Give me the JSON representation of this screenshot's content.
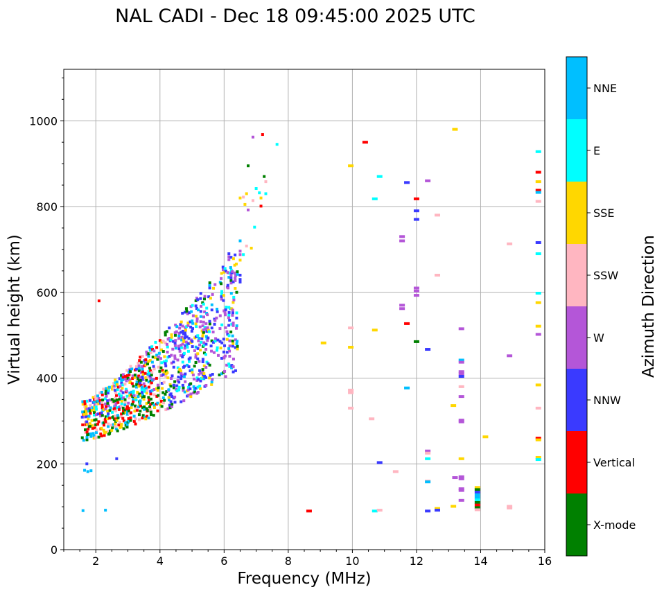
{
  "chart_data": {
    "type": "scatter",
    "title": "NAL CADI - Dec 18 09:45:00 2025 UTC",
    "xlabel": "Frequency (MHz)",
    "ylabel": "Virtual height (km)",
    "xlim": [
      1,
      16
    ],
    "ylim": [
      0,
      1120
    ],
    "xticks": [
      2,
      4,
      6,
      8,
      10,
      12,
      14,
      16
    ],
    "xtick_labels": [
      "2",
      "4",
      "6",
      "8",
      "10",
      "12",
      "14",
      "16"
    ],
    "yticks": [
      0,
      200,
      400,
      600,
      800,
      1000
    ],
    "ytick_labels": [
      "0",
      "200",
      "400",
      "600",
      "800",
      "1000"
    ],
    "grid": true,
    "colorbar": {
      "label": "Azimuth Direction",
      "categories": [
        "X-mode",
        "Vertical",
        "NNW",
        "W",
        "SSW",
        "SSE",
        "E",
        "NNE"
      ],
      "colors": {
        "X-mode": "#008000",
        "Vertical": "#ff0000",
        "NNW": "#3a3aff",
        "W": "#b456d8",
        "SSW": "#ffb6c1",
        "SSE": "#ffd700",
        "E": "#00ffff",
        "NNE": "#00bfff"
      }
    },
    "cluster": {
      "description_free": true,
      "freq_range": [
        1.6,
        6.4
      ],
      "height_lower_at_start": 255,
      "height_upper_at_start": 345,
      "height_lower_at_end": 420,
      "height_upper_at_end": 700
    },
    "points": [
      {
        "f": 1.65,
        "h": 185,
        "c": "NNE"
      },
      {
        "f": 1.75,
        "h": 182,
        "c": "NNE"
      },
      {
        "f": 1.85,
        "h": 184,
        "c": "NNE"
      },
      {
        "f": 1.72,
        "h": 200,
        "c": "NNW"
      },
      {
        "f": 1.6,
        "h": 91,
        "c": "NNE"
      },
      {
        "f": 2.3,
        "h": 92,
        "c": "NNE"
      },
      {
        "f": 2.65,
        "h": 212,
        "c": "NNW"
      },
      {
        "f": 2.1,
        "h": 580,
        "c": "Vertical"
      },
      {
        "f": 6.0,
        "h": 447,
        "c": "W"
      },
      {
        "f": 6.2,
        "h": 562,
        "c": "NNE"
      },
      {
        "f": 6.1,
        "h": 612,
        "c": "W"
      },
      {
        "f": 6.15,
        "h": 690,
        "c": "NNW"
      },
      {
        "f": 6.15,
        "h": 683,
        "c": "W"
      },
      {
        "f": 6.15,
        "h": 676,
        "c": "W"
      },
      {
        "f": 6.15,
        "h": 645,
        "c": "E"
      },
      {
        "f": 6.15,
        "h": 635,
        "c": "NNE"
      },
      {
        "f": 6.5,
        "h": 696,
        "c": "W"
      },
      {
        "f": 6.5,
        "h": 688,
        "c": "W"
      },
      {
        "f": 6.6,
        "h": 688,
        "c": "E"
      },
      {
        "f": 6.5,
        "h": 675,
        "c": "SSE"
      },
      {
        "f": 6.5,
        "h": 640,
        "c": "NNW"
      },
      {
        "f": 6.5,
        "h": 630,
        "c": "NNW"
      },
      {
        "f": 6.5,
        "h": 624,
        "c": "NNW"
      },
      {
        "f": 6.5,
        "h": 720,
        "c": "NNE"
      },
      {
        "f": 6.7,
        "h": 708,
        "c": "SSW"
      },
      {
        "f": 6.85,
        "h": 703,
        "c": "SSE"
      },
      {
        "f": 6.5,
        "h": 820,
        "c": "SSE"
      },
      {
        "f": 6.6,
        "h": 822,
        "c": "SSW"
      },
      {
        "f": 6.7,
        "h": 830,
        "c": "SSE"
      },
      {
        "f": 6.65,
        "h": 805,
        "c": "SSE"
      },
      {
        "f": 6.75,
        "h": 792,
        "c": "W"
      },
      {
        "f": 6.9,
        "h": 814,
        "c": "SSW"
      },
      {
        "f": 7.0,
        "h": 842,
        "c": "E"
      },
      {
        "f": 7.1,
        "h": 832,
        "c": "E"
      },
      {
        "f": 7.15,
        "h": 820,
        "c": "SSE"
      },
      {
        "f": 7.15,
        "h": 801,
        "c": "Vertical"
      },
      {
        "f": 7.3,
        "h": 830,
        "c": "E"
      },
      {
        "f": 7.25,
        "h": 870,
        "c": "X-mode"
      },
      {
        "f": 7.3,
        "h": 858,
        "c": "SSW"
      },
      {
        "f": 6.95,
        "h": 752,
        "c": "E"
      },
      {
        "f": 6.75,
        "h": 895,
        "c": "X-mode"
      },
      {
        "f": 6.9,
        "h": 962,
        "c": "W"
      },
      {
        "f": 7.2,
        "h": 968,
        "c": "Vertical"
      },
      {
        "f": 7.65,
        "h": 945,
        "c": "E"
      },
      {
        "f": 8.65,
        "h": 90,
        "c": "Vertical"
      },
      {
        "f": 9.1,
        "h": 482,
        "c": "SSE"
      },
      {
        "f": 9.95,
        "h": 895,
        "c": "SSE"
      },
      {
        "f": 9.95,
        "h": 517,
        "c": "SSW"
      },
      {
        "f": 9.95,
        "h": 472,
        "c": "SSE"
      },
      {
        "f": 9.95,
        "h": 372,
        "c": "SSW"
      },
      {
        "f": 9.95,
        "h": 366,
        "c": "SSW"
      },
      {
        "f": 9.95,
        "h": 330,
        "c": "SSW"
      },
      {
        "f": 10.4,
        "h": 950,
        "c": "Vertical"
      },
      {
        "f": 10.6,
        "h": 305,
        "c": "SSW"
      },
      {
        "f": 10.7,
        "h": 818,
        "c": "E"
      },
      {
        "f": 10.7,
        "h": 512,
        "c": "SSE"
      },
      {
        "f": 10.85,
        "h": 870,
        "c": "E"
      },
      {
        "f": 10.85,
        "h": 203,
        "c": "NNW"
      },
      {
        "f": 10.7,
        "h": 90,
        "c": "E"
      },
      {
        "f": 10.85,
        "h": 92,
        "c": "SSW"
      },
      {
        "f": 11.35,
        "h": 182,
        "c": "SSW"
      },
      {
        "f": 11.55,
        "h": 730,
        "c": "W"
      },
      {
        "f": 11.55,
        "h": 720,
        "c": "W"
      },
      {
        "f": 11.55,
        "h": 570,
        "c": "W"
      },
      {
        "f": 11.55,
        "h": 562,
        "c": "W"
      },
      {
        "f": 11.7,
        "h": 856,
        "c": "NNW"
      },
      {
        "f": 11.7,
        "h": 527,
        "c": "Vertical"
      },
      {
        "f": 11.7,
        "h": 377,
        "c": "NNE"
      },
      {
        "f": 12.0,
        "h": 818,
        "c": "Vertical"
      },
      {
        "f": 12.0,
        "h": 790,
        "c": "NNW"
      },
      {
        "f": 12.0,
        "h": 770,
        "c": "NNW"
      },
      {
        "f": 12.0,
        "h": 610,
        "c": "W"
      },
      {
        "f": 12.0,
        "h": 603,
        "c": "W"
      },
      {
        "f": 12.0,
        "h": 593,
        "c": "W"
      },
      {
        "f": 12.0,
        "h": 485,
        "c": "X-mode"
      },
      {
        "f": 12.35,
        "h": 860,
        "c": "W"
      },
      {
        "f": 12.35,
        "h": 467,
        "c": "NNW"
      },
      {
        "f": 12.35,
        "h": 230,
        "c": "W"
      },
      {
        "f": 12.35,
        "h": 225,
        "c": "SSW"
      },
      {
        "f": 12.35,
        "h": 212,
        "c": "E"
      },
      {
        "f": 12.35,
        "h": 160,
        "c": "SSW"
      },
      {
        "f": 12.35,
        "h": 158,
        "c": "NNE"
      },
      {
        "f": 12.35,
        "h": 90,
        "c": "NNW"
      },
      {
        "f": 12.65,
        "h": 780,
        "c": "SSW"
      },
      {
        "f": 12.65,
        "h": 640,
        "c": "SSW"
      },
      {
        "f": 12.65,
        "h": 96,
        "c": "SSE"
      },
      {
        "f": 12.65,
        "h": 92,
        "c": "NNW"
      },
      {
        "f": 13.2,
        "h": 980,
        "c": "SSE"
      },
      {
        "f": 13.4,
        "h": 515,
        "c": "W"
      },
      {
        "f": 13.4,
        "h": 442,
        "c": "NNE"
      },
      {
        "f": 13.4,
        "h": 437,
        "c": "W"
      },
      {
        "f": 13.4,
        "h": 415,
        "c": "W"
      },
      {
        "f": 13.4,
        "h": 410,
        "c": "W"
      },
      {
        "f": 13.4,
        "h": 404,
        "c": "NNW"
      },
      {
        "f": 13.4,
        "h": 380,
        "c": "SSW"
      },
      {
        "f": 13.4,
        "h": 357,
        "c": "W"
      },
      {
        "f": 13.15,
        "h": 336,
        "c": "SSE"
      },
      {
        "f": 13.4,
        "h": 302,
        "c": "W"
      },
      {
        "f": 13.4,
        "h": 298,
        "c": "W"
      },
      {
        "f": 13.4,
        "h": 212,
        "c": "SSE"
      },
      {
        "f": 13.2,
        "h": 168,
        "c": "W"
      },
      {
        "f": 13.4,
        "h": 170,
        "c": "W"
      },
      {
        "f": 13.4,
        "h": 165,
        "c": "W"
      },
      {
        "f": 13.4,
        "h": 142,
        "c": "W"
      },
      {
        "f": 13.4,
        "h": 138,
        "c": "W"
      },
      {
        "f": 13.4,
        "h": 115,
        "c": "W"
      },
      {
        "f": 13.15,
        "h": 101,
        "c": "SSE"
      },
      {
        "f": 13.9,
        "h": 145,
        "c": "SSE"
      },
      {
        "f": 13.9,
        "h": 140,
        "c": "X-mode"
      },
      {
        "f": 13.9,
        "h": 134,
        "c": "NNW"
      },
      {
        "f": 13.9,
        "h": 128,
        "c": "NNE"
      },
      {
        "f": 13.9,
        "h": 122,
        "c": "NNE"
      },
      {
        "f": 13.9,
        "h": 116,
        "c": "E"
      },
      {
        "f": 13.9,
        "h": 110,
        "c": "X-mode"
      },
      {
        "f": 13.9,
        "h": 104,
        "c": "Vertical"
      },
      {
        "f": 13.9,
        "h": 98,
        "c": "X-mode"
      },
      {
        "f": 13.9,
        "h": 93,
        "c": "SSW"
      },
      {
        "f": 14.15,
        "h": 263,
        "c": "SSE"
      },
      {
        "f": 14.9,
        "h": 713,
        "c": "SSW"
      },
      {
        "f": 14.9,
        "h": 452,
        "c": "W"
      },
      {
        "f": 14.9,
        "h": 101,
        "c": "SSW"
      },
      {
        "f": 14.9,
        "h": 97,
        "c": "SSW"
      },
      {
        "f": 15.8,
        "h": 928,
        "c": "E"
      },
      {
        "f": 15.8,
        "h": 880,
        "c": "Vertical"
      },
      {
        "f": 15.8,
        "h": 858,
        "c": "SSE"
      },
      {
        "f": 15.8,
        "h": 838,
        "c": "Vertical"
      },
      {
        "f": 15.8,
        "h": 833,
        "c": "NNE"
      },
      {
        "f": 15.8,
        "h": 812,
        "c": "SSW"
      },
      {
        "f": 15.8,
        "h": 716,
        "c": "NNW"
      },
      {
        "f": 15.8,
        "h": 690,
        "c": "E"
      },
      {
        "f": 15.8,
        "h": 598,
        "c": "E"
      },
      {
        "f": 15.8,
        "h": 576,
        "c": "SSE"
      },
      {
        "f": 15.8,
        "h": 521,
        "c": "SSE"
      },
      {
        "f": 15.8,
        "h": 502,
        "c": "W"
      },
      {
        "f": 15.8,
        "h": 384,
        "c": "SSE"
      },
      {
        "f": 15.8,
        "h": 330,
        "c": "SSW"
      },
      {
        "f": 15.8,
        "h": 260,
        "c": "Vertical"
      },
      {
        "f": 15.8,
        "h": 256,
        "c": "SSE"
      },
      {
        "f": 15.8,
        "h": 215,
        "c": "SSE"
      },
      {
        "f": 15.8,
        "h": 210,
        "c": "E"
      }
    ]
  }
}
